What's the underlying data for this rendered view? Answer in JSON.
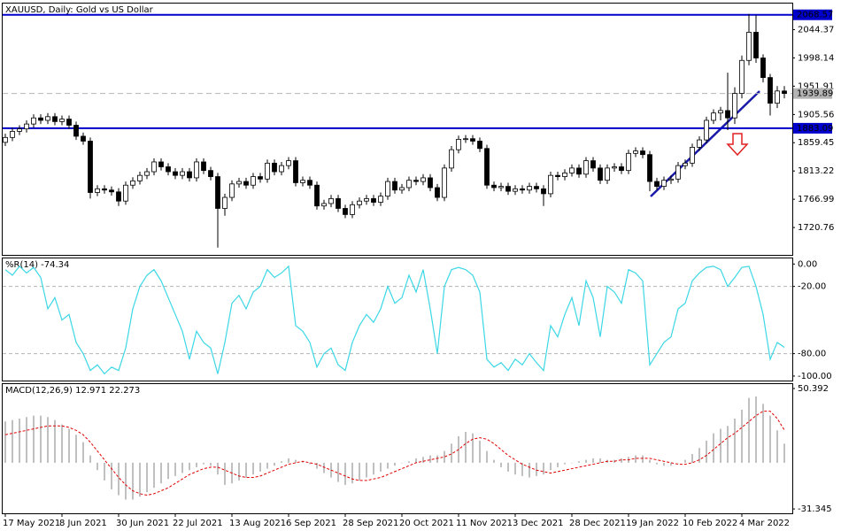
{
  "chart_data": [
    {
      "type": "candlestick",
      "title": "XAUUSD, Daily:  Gold vs US Dollar",
      "categories": [
        "17 May 2021",
        null,
        null,
        null,
        null,
        null,
        null,
        null,
        "8 Jun 2021",
        null,
        null,
        null,
        null,
        null,
        null,
        null,
        "30 Jun 2021",
        null,
        null,
        null,
        null,
        null,
        null,
        null,
        "22 Jul 2021",
        null,
        null,
        null,
        null,
        null,
        null,
        null,
        "13 Aug 2021",
        null,
        null,
        null,
        null,
        null,
        null,
        null,
        "6 Sep 2021",
        null,
        null,
        null,
        null,
        null,
        null,
        null,
        "28 Sep 2021",
        null,
        null,
        null,
        null,
        null,
        null,
        null,
        "20 Oct 2021",
        null,
        null,
        null,
        null,
        null,
        null,
        null,
        "11 Nov 2021",
        null,
        null,
        null,
        null,
        null,
        null,
        null,
        "3 Dec 2021",
        null,
        null,
        null,
        null,
        null,
        null,
        null,
        "28 Dec 2021",
        null,
        null,
        null,
        null,
        null,
        null,
        null,
        "19 Jan 2022",
        null,
        null,
        null,
        null,
        null,
        null,
        null,
        "10 Feb 2022",
        null,
        null,
        null,
        null,
        null,
        null,
        null,
        "4 Mar 2022",
        null,
        null,
        null,
        null,
        null,
        null
      ],
      "open": [
        1860,
        1868,
        1878,
        1882,
        1890,
        1900,
        1896,
        1902,
        1894,
        1898,
        1888,
        1870,
        1862,
        1778,
        1784,
        1782,
        1779,
        1764,
        1790,
        1797,
        1806,
        1812,
        1828,
        1820,
        1812,
        1806,
        1812,
        1802,
        1828,
        1814,
        1804,
        1752,
        1770,
        1792,
        1796,
        1790,
        1804,
        1800,
        1826,
        1812,
        1822,
        1830,
        1794,
        1798,
        1790,
        1756,
        1760,
        1768,
        1752,
        1742,
        1758,
        1764,
        1768,
        1762,
        1772,
        1796,
        1782,
        1786,
        1798,
        1796,
        1802,
        1786,
        1770,
        1818,
        1848,
        1865,
        1866,
        1862,
        1850,
        1790,
        1786,
        1788,
        1780,
        1784,
        1782,
        1788,
        1784,
        1776,
        1806,
        1804,
        1810,
        1818,
        1808,
        1830,
        1818,
        1798,
        1818,
        1820,
        1814,
        1842,
        1846,
        1840,
        1796,
        1788,
        1798,
        1800,
        1822,
        1826,
        1852,
        1864,
        1896,
        1908,
        1912,
        1900,
        1940,
        1994,
        2040,
        1998,
        1966,
        1924,
        1944
      ],
      "high": [
        1874,
        1884,
        1888,
        1896,
        1906,
        1906,
        1908,
        1908,
        1904,
        1904,
        1894,
        1876,
        1868,
        1790,
        1790,
        1788,
        1785,
        1796,
        1803,
        1812,
        1818,
        1834,
        1834,
        1826,
        1818,
        1818,
        1818,
        1834,
        1834,
        1820,
        1810,
        1776,
        1798,
        1802,
        1802,
        1810,
        1810,
        1832,
        1832,
        1828,
        1836,
        1836,
        1804,
        1804,
        1796,
        1766,
        1774,
        1774,
        1758,
        1764,
        1770,
        1774,
        1774,
        1778,
        1802,
        1802,
        1792,
        1804,
        1804,
        1808,
        1808,
        1792,
        1824,
        1854,
        1871,
        1872,
        1872,
        1868,
        1856,
        1796,
        1794,
        1794,
        1790,
        1790,
        1794,
        1794,
        1790,
        1812,
        1812,
        1816,
        1824,
        1824,
        1836,
        1836,
        1824,
        1824,
        1826,
        1826,
        1848,
        1852,
        1852,
        1846,
        1802,
        1804,
        1806,
        1828,
        1832,
        1858,
        1870,
        1902,
        1914,
        1918,
        1974,
        1950,
        2002,
        2070,
        2068,
        2004,
        1972,
        1952,
        1952
      ],
      "low": [
        1854,
        1862,
        1872,
        1876,
        1884,
        1890,
        1890,
        1888,
        1888,
        1882,
        1864,
        1856,
        1768,
        1772,
        1776,
        1773,
        1756,
        1758,
        1784,
        1791,
        1800,
        1806,
        1814,
        1806,
        1800,
        1800,
        1796,
        1796,
        1808,
        1798,
        1688,
        1740,
        1764,
        1786,
        1784,
        1784,
        1794,
        1794,
        1806,
        1806,
        1816,
        1788,
        1788,
        1784,
        1750,
        1750,
        1754,
        1746,
        1736,
        1736,
        1752,
        1758,
        1756,
        1756,
        1766,
        1776,
        1776,
        1780,
        1790,
        1790,
        1780,
        1764,
        1764,
        1812,
        1842,
        1859,
        1856,
        1844,
        1784,
        1780,
        1780,
        1774,
        1774,
        1776,
        1776,
        1778,
        1756,
        1770,
        1798,
        1798,
        1804,
        1802,
        1802,
        1812,
        1792,
        1792,
        1812,
        1808,
        1808,
        1836,
        1834,
        1780,
        1782,
        1782,
        1792,
        1794,
        1816,
        1820,
        1846,
        1858,
        1890,
        1896,
        1880,
        1890,
        1932,
        1986,
        1990,
        1958,
        1904,
        1916,
        1932
      ],
      "close": [
        1868,
        1878,
        1882,
        1890,
        1900,
        1896,
        1902,
        1894,
        1898,
        1888,
        1870,
        1862,
        1778,
        1784,
        1782,
        1779,
        1764,
        1790,
        1797,
        1806,
        1812,
        1828,
        1820,
        1812,
        1806,
        1812,
        1802,
        1828,
        1814,
        1804,
        1752,
        1770,
        1792,
        1796,
        1790,
        1804,
        1800,
        1826,
        1812,
        1822,
        1830,
        1794,
        1798,
        1790,
        1756,
        1760,
        1768,
        1752,
        1742,
        1758,
        1764,
        1768,
        1762,
        1772,
        1796,
        1782,
        1786,
        1798,
        1796,
        1802,
        1786,
        1770,
        1818,
        1848,
        1865,
        1866,
        1862,
        1850,
        1790,
        1786,
        1788,
        1780,
        1784,
        1782,
        1788,
        1784,
        1776,
        1806,
        1804,
        1810,
        1818,
        1808,
        1830,
        1818,
        1798,
        1818,
        1820,
        1814,
        1842,
        1846,
        1840,
        1796,
        1788,
        1798,
        1800,
        1822,
        1826,
        1852,
        1864,
        1896,
        1908,
        1912,
        1900,
        1940,
        1994,
        2040,
        1998,
        1966,
        1924,
        1944,
        1940
      ],
      "ylim": [
        1676,
        2087
      ],
      "yticks": [
        2044.37,
        1998.14,
        1951.91,
        1905.56,
        1859.45,
        1813.22,
        1766.99,
        1720.76
      ],
      "levels": [
        {
          "value": 2068.57,
          "color": "#0000cc",
          "style": "solid"
        },
        {
          "value": 1939.89,
          "color": "#b4b4b4",
          "style": "dashed"
        },
        {
          "value": 1883.09,
          "color": "#0000cc",
          "style": "solid"
        }
      ]
    },
    {
      "type": "line",
      "title": "%R(14) -74.34",
      "color": "#3cd7e6",
      "values": [
        -5,
        -10,
        -2,
        -8,
        -3,
        -12,
        -40,
        -30,
        -50,
        -45,
        -70,
        -80,
        -95,
        -90,
        -98,
        -92,
        -95,
        -75,
        -40,
        -20,
        -10,
        -5,
        -15,
        -30,
        -45,
        -60,
        -85,
        -60,
        -70,
        -75,
        -98,
        -70,
        -35,
        -28,
        -40,
        -25,
        -20,
        -5,
        -12,
        -8,
        -2,
        -55,
        -60,
        -70,
        -92,
        -80,
        -75,
        -90,
        -95,
        -70,
        -55,
        -45,
        -52,
        -40,
        -20,
        -35,
        -30,
        -10,
        -25,
        -5,
        -40,
        -80,
        -20,
        -5,
        -3,
        -5,
        -10,
        -25,
        -85,
        -92,
        -88,
        -95,
        -85,
        -90,
        -80,
        -88,
        -95,
        -55,
        -65,
        -45,
        -30,
        -55,
        -15,
        -30,
        -65,
        -20,
        -25,
        -35,
        -5,
        -8,
        -15,
        -90,
        -80,
        -70,
        -65,
        -40,
        -35,
        -15,
        -8,
        -3,
        -2,
        -5,
        -20,
        -12,
        -3,
        -2,
        -20,
        -45,
        -85,
        -70,
        -74.34
      ],
      "ylim": [
        -104,
        5
      ],
      "yticks": [
        {
          "value": 0,
          "label": "0.00"
        },
        {
          "value": -20,
          "label": "-20.00"
        },
        {
          "value": -80,
          "label": "-80.00"
        },
        {
          "value": -100,
          "label": "-100.00"
        }
      ]
    },
    {
      "type": "macd",
      "title": "MACD(12,26,9) 12.971 22.273",
      "series": [
        {
          "name": "MACD",
          "color": "#c0c0c0",
          "values": [
            28,
            29,
            30,
            31,
            32,
            32,
            31,
            29,
            26,
            23,
            19,
            14,
            5,
            -5,
            -12,
            -18,
            -22,
            -25,
            -25,
            -23,
            -20,
            -17,
            -14,
            -11,
            -9,
            -7,
            -5,
            -3,
            -1,
            -2,
            -8,
            -15,
            -14,
            -12,
            -10,
            -8,
            -6,
            -4,
            -2,
            1,
            3,
            2,
            1,
            -1,
            -4,
            -7,
            -10,
            -13,
            -15,
            -14,
            -12,
            -10,
            -8,
            -6,
            -4,
            -2,
            0,
            1,
            3,
            4,
            5,
            5,
            8,
            13,
            18,
            21,
            20,
            15,
            8,
            2,
            -3,
            -6,
            -8,
            -9,
            -10,
            -9,
            -8,
            -5,
            -3,
            -1,
            0,
            1,
            2,
            3,
            3,
            2,
            2,
            3,
            4,
            5,
            5,
            2,
            -1,
            -2,
            -2,
            0,
            2,
            6,
            10,
            15,
            20,
            23,
            25,
            30,
            36,
            44,
            45,
            40,
            32,
            22,
            12.971
          ]
        },
        {
          "name": "Signal",
          "color": "#e00000",
          "values": [
            19,
            20,
            21,
            22,
            23,
            24,
            25,
            25,
            25,
            24,
            22,
            19,
            14,
            8,
            2,
            -4,
            -10,
            -15,
            -19,
            -21,
            -22,
            -21,
            -19,
            -17,
            -14,
            -11,
            -8,
            -6,
            -4,
            -3,
            -3,
            -5,
            -7,
            -9,
            -10,
            -10,
            -9,
            -7,
            -5,
            -3,
            -1,
            0,
            1,
            0,
            -1,
            -3,
            -5,
            -7,
            -9,
            -11,
            -12,
            -12,
            -11,
            -10,
            -8,
            -6,
            -4,
            -2,
            0,
            1,
            2,
            3,
            4,
            6,
            9,
            13,
            16,
            17,
            16,
            13,
            9,
            5,
            2,
            -1,
            -3,
            -5,
            -6,
            -7,
            -6,
            -5,
            -4,
            -3,
            -2,
            -1,
            0,
            1,
            1,
            2,
            2,
            3,
            3,
            3,
            2,
            1,
            0,
            -1,
            -1,
            0,
            2,
            5,
            9,
            13,
            17,
            20,
            24,
            28,
            32,
            35,
            35,
            30,
            22.273
          ]
        }
      ],
      "ylim": [
        -34.3,
        53.4
      ],
      "yticks": [
        50.392,
        -31.345
      ]
    }
  ]
}
